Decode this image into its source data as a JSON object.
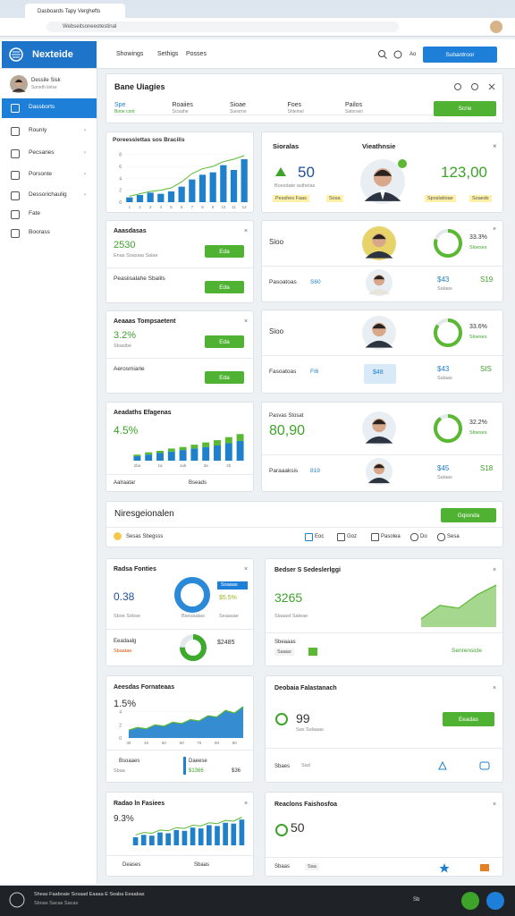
{
  "browser": {
    "tab": "Dasboards Tapy Verghefts",
    "url": "Webseitsoneeotestinal"
  },
  "header": {
    "brand": "Nexteide",
    "nav": [
      "Showings",
      "Sethigs",
      "Posses"
    ],
    "lang": "Ao",
    "button": "Subantroor"
  },
  "user": {
    "name": "Dessile Sisk",
    "role": "Soneth ilelse"
  },
  "sidebar": [
    "Dassborts",
    "Rounly",
    "Pecsaries",
    "Porsonte",
    "Dessorichaulig",
    "Fate",
    "Boorass"
  ],
  "overview": {
    "title": "Bane Uiagies",
    "tabs": [
      {
        "label": "Spe",
        "sub": "Bone cont"
      },
      {
        "label": "Roaiies",
        "sub": "Scoaihe"
      },
      {
        "label": "Sioae",
        "sub": "Suesrne"
      },
      {
        "label": "Foes",
        "sub": "Shteinel"
      },
      {
        "label": "Pailos",
        "sub": "Satorsen"
      }
    ],
    "button": "Scrie"
  },
  "revenue": {
    "title": "Poreesslettas sos Bracilis",
    "chart": {
      "type": "bar",
      "categories": [
        "1",
        "2",
        "3",
        "4",
        "5",
        "6",
        "7",
        "8",
        "9",
        "10",
        "11",
        "12"
      ],
      "values": [
        0.8,
        1.2,
        1.6,
        1.4,
        1.8,
        2.6,
        3.8,
        4.6,
        5,
        6.2,
        5.4,
        7.2
      ],
      "color": "#1f80cc",
      "line": [
        1,
        1.4,
        1.8,
        2,
        2.4,
        3.4,
        4.8,
        5.6,
        6,
        6.8,
        7.2,
        7.8
      ],
      "line_color": "#5bb832",
      "ylim": [
        0,
        9
      ],
      "yticks": [
        0,
        2,
        4,
        6,
        8
      ]
    }
  },
  "kpis": [
    {
      "title": "Aaasdasas",
      "value": "2530",
      "note": "Enas Soasiaa Salae",
      "button": "Eda",
      "row": "Peasiisalahe Sbalils",
      "row_button": "Eda"
    },
    {
      "title": "Aeaaas Tompsaetent",
      "value": "3.2%",
      "note": "Sbastbe",
      "button": "Eda",
      "row": "Aerosmiarie",
      "row_button": "Eda"
    }
  ],
  "growth": {
    "title": "Aeadaths Efagenas",
    "value": "4.5%",
    "chart": {
      "type": "bar",
      "categories": [
        "2ba",
        null,
        "1a",
        null,
        "1ab",
        null,
        "3a",
        null,
        "2b",
        null
      ],
      "series": [
        {
          "color": "#1f80cc",
          "values": [
            0.6,
            0.8,
            1,
            1.2,
            1.4,
            1.6,
            1.8,
            2,
            2.3,
            2.6
          ]
        },
        {
          "color": "#5bb832",
          "values": [
            0.2,
            0.3,
            0.3,
            0.4,
            0.4,
            0.5,
            0.6,
            0.7,
            0.8,
            0.9
          ]
        }
      ],
      "ylim": [
        0,
        4
      ]
    },
    "footer": [
      "Aalraatar",
      "Bseads"
    ]
  },
  "profile": {
    "left_title": "Sioralas",
    "right_title": "Vieathnsie",
    "left_value": "50",
    "left_note": "Boesdate asthelas",
    "left_tags": [
      "Pesshes Faas",
      "Sosa"
    ],
    "right_value": "123,00",
    "right_tags": [
      "Sposlatioae",
      "Soaeds"
    ]
  },
  "people": [
    {
      "top": {
        "label": "Sioo",
        "pct": "33.3%",
        "note": "Sloeses",
        "donut": {
          "value": 80,
          "color": "#5bb832"
        }
      },
      "bottom": {
        "label": "Pasoatoas",
        "code": "S60",
        "v1": "$43",
        "v1_note": "Salaas",
        "v2": "S19"
      }
    },
    {
      "top": {
        "label": "Sioo",
        "pct": "33.6%",
        "note": "Sloeses",
        "donut": {
          "value": 85,
          "color": "#5bb832"
        }
      },
      "bottom": {
        "label": "Fasoatoas",
        "code": "FI6",
        "badge": "$48",
        "v1": "$43",
        "v1_note": "Salaas",
        "v2": "SIS"
      }
    },
    {
      "top": {
        "label": "Pasvas Stosat",
        "value": "80,90",
        "pct": "32.2%",
        "note": "Sloeses",
        "donut": {
          "value": 90,
          "color": "#5bb832"
        }
      },
      "bottom": {
        "label": "Paraaaksis",
        "code": "819",
        "v1": "$45",
        "v1_note": "Salaas",
        "v2": "S18"
      }
    }
  ],
  "section": {
    "title": "Niresgeionalen",
    "button": "Gqionda",
    "row": "Sesas Sbegsss",
    "filters": [
      "Eoc",
      "Goz",
      "Pasolea",
      "Do",
      "Sesa"
    ]
  },
  "ratio": {
    "title": "Radsa Fonties",
    "value": "0.38",
    "note": "Sboe Sobse",
    "badge": "Soaaas",
    "pct": "$5.5%",
    "pct_note": "Seaasae",
    "donut_note": "Bseuaatas",
    "donut": {
      "value": 100,
      "color": "#2a8ad8"
    },
    "row": "Eeadaalg",
    "row_note": "Sbaatae",
    "row_value": "$2485",
    "row_donut": {
      "value": 75,
      "color": "#3daa2e"
    }
  },
  "trend": {
    "title": "Aeesdas Fornateaas",
    "value": "1.5%",
    "chart": {
      "type": "area",
      "categories": [
        "30",
        null,
        "40",
        null,
        "50",
        null,
        "60",
        null,
        "70",
        null,
        "80",
        null,
        "90",
        null
      ],
      "values": [
        1.2,
        1.6,
        1.4,
        2,
        1.8,
        2.4,
        2.2,
        2.8,
        2.6,
        3.4,
        3.2,
        4.2,
        3.8,
        4.8
      ],
      "color": "#1f80cc",
      "ylim": [
        0,
        6
      ],
      "yticks": [
        0,
        2,
        4
      ]
    },
    "row": [
      "Bsoaaes",
      "Sbaa",
      "Daeese",
      "$1366",
      "$36"
    ]
  },
  "rates": {
    "title": "Radao ln Fasiees",
    "value": "9.3%",
    "chart": {
      "type": "bar",
      "categories": [
        null,
        null,
        null,
        null,
        null,
        null,
        null,
        null,
        null,
        null,
        null,
        null,
        null,
        null
      ],
      "values": [
        1,
        1.3,
        1.2,
        1.6,
        1.5,
        1.9,
        1.8,
        2.2,
        2.1,
        2.5,
        2.4,
        2.8,
        2.7,
        3.2
      ],
      "color": "#1f80cc",
      "line": [
        1.3,
        1.6,
        1.5,
        1.9,
        1.8,
        2.2,
        2.1,
        2.5,
        2.4,
        2.8,
        2.7,
        3.1,
        3,
        3.5
      ],
      "line_color": "#5bb832",
      "ylim": [
        0,
        4
      ]
    },
    "row": [
      "Deases",
      "Sbaas"
    ]
  },
  "sales": {
    "title": "Bedser S Sedeslerlggi",
    "value": "3265",
    "note": "Slaaast Sateae",
    "chart": {
      "type": "line",
      "values": [
        0.6,
        1.6,
        1.4,
        2.4,
        3.1
      ],
      "color": "#5bb832",
      "ylim": [
        0,
        3.5
      ]
    },
    "row": [
      "Sbeaaas",
      "Saaas",
      "Senrensicle"
    ]
  },
  "deals": {
    "title": "Deobaia Falastanach",
    "value": "99",
    "note": "Sas Solaaas",
    "button": "Eeadas",
    "row": [
      "Sbaes",
      "Sad"
    ]
  },
  "reactions": {
    "title": "Reaclons Faishosfoa",
    "value": "50",
    "row": [
      "Sbaas",
      "Saa"
    ]
  },
  "footer": {
    "text": "Sheas Faaboaie Sosaad Eaaaa E Seaba Eeaabas",
    "sub": "Sboas Sacas Sacas",
    "badge": "Sb"
  }
}
